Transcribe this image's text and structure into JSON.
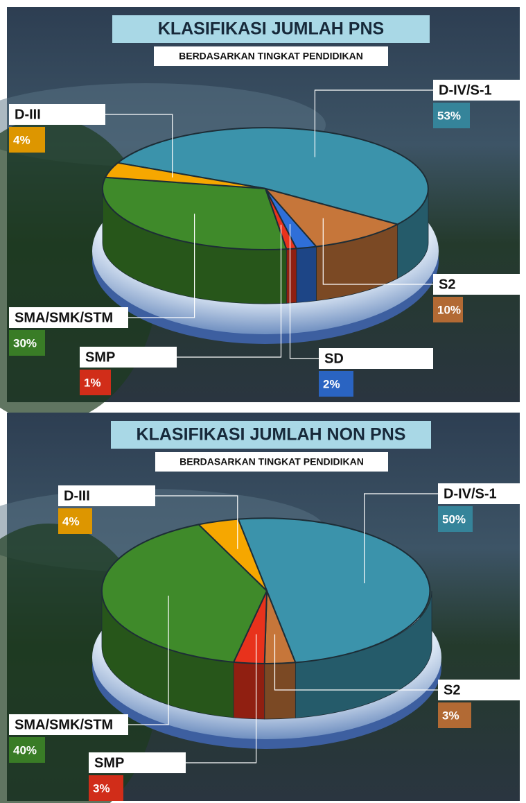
{
  "chart_data": [
    {
      "type": "pie",
      "title": "KLASIFIKASI JUMLAH PNS",
      "subtitle": "BERDASARKAN TINGKAT PENDIDIKAN",
      "categories": [
        "D-IV/S-1",
        "S2",
        "SD",
        "SMP",
        "SMA/SMK/STM",
        "D-III"
      ],
      "values": [
        53,
        10,
        2,
        1,
        30,
        4
      ],
      "value_labels": [
        "53%",
        "10%",
        "2%",
        "1%",
        "30%",
        "4%"
      ],
      "colors": [
        "#3b93ab",
        "#c6763a",
        "#2f6fd8",
        "#e8321c",
        "#3f8a2a",
        "#f6a700"
      ]
    },
    {
      "type": "pie",
      "title": "KLASIFIKASI JUMLAH NON PNS",
      "subtitle": "BERDASARKAN TINGKAT PENDIDIKAN",
      "categories": [
        "D-IV/S-1",
        "S2",
        "SMP",
        "SMA/SMK/STM",
        "D-III"
      ],
      "values": [
        50,
        3,
        3,
        40,
        4
      ],
      "value_labels": [
        "50%",
        "3%",
        "3%",
        "40%",
        "4%"
      ],
      "colors": [
        "#3b93ab",
        "#c6763a",
        "#e8321c",
        "#3f8a2a",
        "#f6a700"
      ]
    }
  ]
}
